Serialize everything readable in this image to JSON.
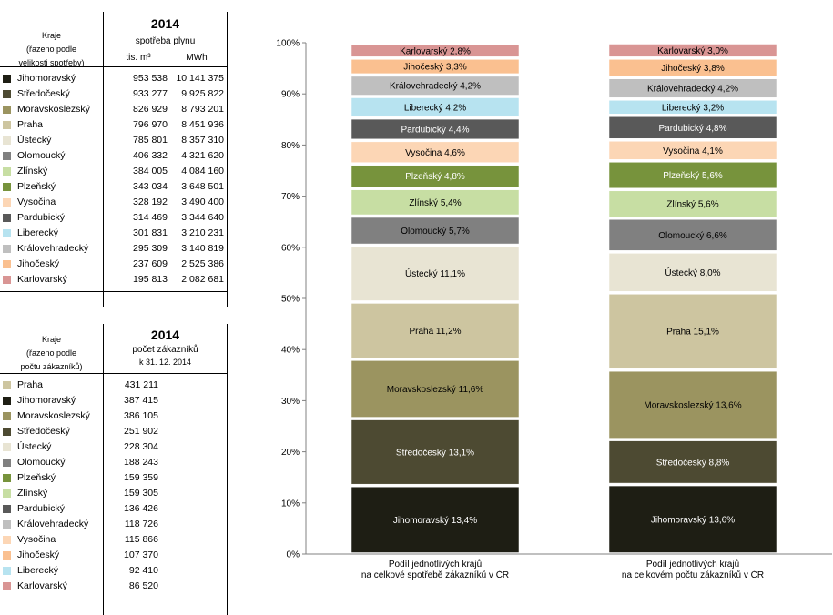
{
  "table1": {
    "col_label_lines": [
      "Kraje",
      "(řazeno podle",
      "velikosti spotřeby)"
    ],
    "year": "2014",
    "subtitle": "spotřeba plynu",
    "unit1": "tis. m³",
    "unit2": "MWh",
    "rows": [
      {
        "name": "Jihomoravský",
        "v1": "953 538",
        "v2": "10 141 375",
        "color": "#1e1e14"
      },
      {
        "name": "Středočeský",
        "v1": "933 277",
        "v2": "9 925 822",
        "color": "#4d4a32"
      },
      {
        "name": "Moravskoslezský",
        "v1": "826 929",
        "v2": "8 793 201",
        "color": "#9b9460"
      },
      {
        "name": "Praha",
        "v1": "796 970",
        "v2": "8 451 936",
        "color": "#cdc5a0"
      },
      {
        "name": "Ústecký",
        "v1": "785 801",
        "v2": "8 357 310",
        "color": "#e8e4d3"
      },
      {
        "name": "Olomoucký",
        "v1": "406 332",
        "v2": "4 321 620",
        "color": "#808080"
      },
      {
        "name": "Zlínský",
        "v1": "384 005",
        "v2": "4 084 160",
        "color": "#c7dea3"
      },
      {
        "name": "Plzeňský",
        "v1": "343 034",
        "v2": "3 648 501",
        "color": "#77933c"
      },
      {
        "name": "Vysočina",
        "v1": "328 192",
        "v2": "3 490 400",
        "color": "#fcd6b5"
      },
      {
        "name": "Pardubický",
        "v1": "314 469",
        "v2": "3 344 640",
        "color": "#595959"
      },
      {
        "name": "Liberecký",
        "v1": "301 831",
        "v2": "3 210 231",
        "color": "#b7e3f0"
      },
      {
        "name": "Královehradecký",
        "v1": "295 309",
        "v2": "3 140 819",
        "color": "#bfbfbf"
      },
      {
        "name": "Jihočeský",
        "v1": "237 609",
        "v2": "2 525 386",
        "color": "#fac090"
      },
      {
        "name": "Karlovarský",
        "v1": "195 813",
        "v2": "2 082 681",
        "color": "#d99594"
      }
    ]
  },
  "table2": {
    "col_label_lines": [
      "Kraje",
      "(řazeno podle",
      "počtu zákazníků)"
    ],
    "year": "2014",
    "subtitle": "počet zákazníků",
    "date": "k 31. 12. 2014",
    "rows": [
      {
        "name": "Praha",
        "v1": "431 211",
        "color": "#cdc5a0"
      },
      {
        "name": "Jihomoravský",
        "v1": "387 415",
        "color": "#1e1e14"
      },
      {
        "name": "Moravskoslezský",
        "v1": "386 105",
        "color": "#9b9460"
      },
      {
        "name": "Středočeský",
        "v1": "251 902",
        "color": "#4d4a32"
      },
      {
        "name": "Ústecký",
        "v1": "228 304",
        "color": "#e8e4d3"
      },
      {
        "name": "Olomoucký",
        "v1": "188 243",
        "color": "#808080"
      },
      {
        "name": "Plzeňský",
        "v1": "159 359",
        "color": "#77933c"
      },
      {
        "name": "Zlínský",
        "v1": "159 305",
        "color": "#c7dea3"
      },
      {
        "name": "Pardubický",
        "v1": "136 426",
        "color": "#595959"
      },
      {
        "name": "Královehradecký",
        "v1": "118 726",
        "color": "#bfbfbf"
      },
      {
        "name": "Vysočina",
        "v1": "115 866",
        "color": "#fcd6b5"
      },
      {
        "name": "Jihočeský",
        "v1": "107 370",
        "color": "#fac090"
      },
      {
        "name": "Liberecký",
        "v1": "92 410",
        "color": "#b7e3f0"
      },
      {
        "name": "Karlovarský",
        "v1": "86 520",
        "color": "#d99594"
      }
    ]
  },
  "chart_data": {
    "type": "bar",
    "stacked": true,
    "percent": true,
    "ylim": [
      0,
      100
    ],
    "yticks": [
      "0%",
      "10%",
      "20%",
      "30%",
      "40%",
      "50%",
      "60%",
      "70%",
      "80%",
      "90%",
      "100%"
    ],
    "categories": [
      [
        "Podíl jednotlivých krajů",
        "na celkové spotřebě zákazníků v ČR"
      ],
      [
        "Podíl jednotlivých krajů",
        "na celkovém počtu zákazníků v ČR"
      ]
    ],
    "series": [
      {
        "name": "Jihomoravský",
        "values": [
          13.4,
          13.6
        ],
        "labels": [
          "Jihomoravský 13,4%",
          "Jihomoravský 13,6%"
        ],
        "color": "#1e1e14",
        "text": "#ffffff"
      },
      {
        "name": "Středočeský",
        "values": [
          13.1,
          8.8
        ],
        "labels": [
          "Středočeský 13,1%",
          "Středočeský 8,8%"
        ],
        "color": "#4d4a32",
        "text": "#ffffff"
      },
      {
        "name": "Moravskoslezský",
        "values": [
          11.6,
          13.6
        ],
        "labels": [
          "Moravskoslezský 11,6%",
          "Moravskoslezský 13,6%"
        ],
        "color": "#9b9460",
        "text": "#000000"
      },
      {
        "name": "Praha",
        "values": [
          11.2,
          15.1
        ],
        "labels": [
          "Praha 11,2%",
          "Praha 15,1%"
        ],
        "color": "#cdc5a0",
        "text": "#000000"
      },
      {
        "name": "Ústecký",
        "values": [
          11.1,
          8.0
        ],
        "labels": [
          "Ústecký 11,1%",
          "Ústecký 8,0%"
        ],
        "color": "#e8e4d3",
        "text": "#000000"
      },
      {
        "name": "Olomoucký",
        "values": [
          5.7,
          6.6
        ],
        "labels": [
          "Olomoucký 5,7%",
          "Olomoucký 6,6%"
        ],
        "color": "#808080",
        "text": "#000000"
      },
      {
        "name": "Zlínský",
        "values": [
          5.4,
          5.6
        ],
        "labels": [
          "Zlínský 5,4%",
          "Zlínský 5,6%"
        ],
        "color": "#c7dea3",
        "text": "#000000"
      },
      {
        "name": "Plzeňský",
        "values": [
          4.8,
          5.6
        ],
        "labels": [
          "Plzeňský 4,8%",
          "Plzeňský 5,6%"
        ],
        "color": "#77933c",
        "text": "#ffffff"
      },
      {
        "name": "Vysočina",
        "values": [
          4.6,
          4.1
        ],
        "labels": [
          "Vysočina 4,6%",
          "Vysočina 4,1%"
        ],
        "color": "#fcd6b5",
        "text": "#000000"
      },
      {
        "name": "Pardubický",
        "values": [
          4.4,
          4.8
        ],
        "labels": [
          "Pardubický 4,4%",
          "Pardubický 4,8%"
        ],
        "color": "#595959",
        "text": "#ffffff"
      },
      {
        "name": "Liberecký",
        "values": [
          4.2,
          3.2
        ],
        "labels": [
          "Liberecký 4,2%",
          "Liberecký 3,2%"
        ],
        "color": "#b7e3f0",
        "text": "#000000"
      },
      {
        "name": "Královehradecký",
        "values": [
          4.2,
          4.2
        ],
        "labels": [
          "Královehradecký 4,2%",
          "Královehradecký 4,2%"
        ],
        "color": "#bfbfbf",
        "text": "#000000"
      },
      {
        "name": "Jihočeský",
        "values": [
          3.3,
          3.8
        ],
        "labels": [
          "Jihočeský 3,3%",
          "Jihočeský 3,8%"
        ],
        "color": "#fac090",
        "text": "#000000"
      },
      {
        "name": "Karlovarský",
        "values": [
          2.8,
          3.0
        ],
        "labels": [
          "Karlovarský 2,8%",
          "Karlovarský 3,0%"
        ],
        "color": "#d99594",
        "text": "#000000"
      }
    ]
  }
}
